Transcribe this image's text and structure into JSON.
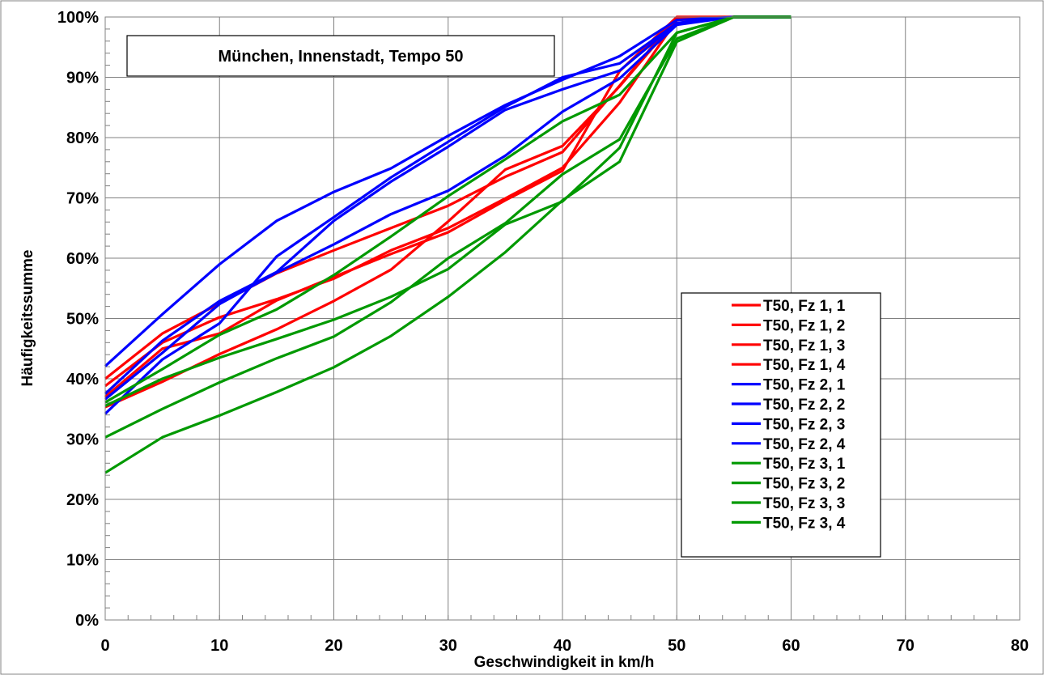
{
  "chart_data": {
    "type": "line",
    "title": "München, Innenstadt, Tempo 50",
    "xlabel": "Geschwindigkeit in km/h",
    "ylabel": "Häufigkeitssumme",
    "xlim": [
      0,
      80
    ],
    "ylim": [
      0,
      100
    ],
    "x_ticks": [
      0,
      10,
      20,
      30,
      40,
      50,
      60,
      70,
      80
    ],
    "y_ticks": [
      "0%",
      "10%",
      "20%",
      "30%",
      "40%",
      "50%",
      "60%",
      "70%",
      "80%",
      "90%",
      "100%"
    ],
    "y_unit": "percent",
    "grid": true,
    "legend_position": "right",
    "x": [
      0,
      5,
      10,
      15,
      20,
      25,
      30,
      35,
      40,
      45,
      50,
      55,
      60
    ],
    "series": [
      {
        "name": "T50, Fz 1, 1",
        "color": "#ff0000",
        "values": [
          40.0,
          47.5,
          52.5,
          57.5,
          61.3,
          65.0,
          68.7,
          73.5,
          77.6,
          88.6,
          100,
          100,
          100
        ]
      },
      {
        "name": "T50, Fz 1, 2",
        "color": "#ff0000",
        "values": [
          38.8,
          46.0,
          50.2,
          53.2,
          56.6,
          61.3,
          65.0,
          69.9,
          75.0,
          85.8,
          99.5,
          100,
          100
        ]
      },
      {
        "name": "T50, Fz 1, 3",
        "color": "#ff0000",
        "values": [
          37.0,
          45.0,
          47.5,
          53.0,
          56.9,
          60.7,
          64.3,
          69.6,
          74.5,
          91.0,
          100,
          100,
          100
        ]
      },
      {
        "name": "T50, Fz 1, 4",
        "color": "#ff0000",
        "values": [
          35.3,
          39.5,
          44.1,
          48.2,
          52.9,
          58.1,
          66.1,
          74.7,
          78.6,
          88.5,
          99.6,
          100,
          100
        ]
      },
      {
        "name": "T50, Fz 2, 1",
        "color": "#0000ff",
        "values": [
          42.1,
          50.7,
          59.0,
          66.2,
          71.0,
          74.9,
          80.3,
          85.4,
          89.6,
          93.5,
          99.5,
          100,
          100
        ]
      },
      {
        "name": "T50, Fz 2, 2",
        "color": "#0000ff",
        "values": [
          37.5,
          46.3,
          52.9,
          57.7,
          66.2,
          72.7,
          78.5,
          84.6,
          88.0,
          91.1,
          99.0,
          100,
          100
        ]
      },
      {
        "name": "T50, Fz 2, 3",
        "color": "#0000ff",
        "values": [
          34.2,
          43.2,
          49.2,
          60.3,
          66.8,
          73.4,
          79.3,
          85.1,
          90.0,
          92.3,
          99.0,
          100,
          100
        ]
      },
      {
        "name": "T50, Fz 2, 4",
        "color": "#0000ff",
        "values": [
          36.6,
          44.3,
          52.4,
          57.6,
          62.3,
          67.3,
          71.2,
          77.0,
          84.3,
          89.8,
          98.7,
          100,
          100
        ]
      },
      {
        "name": "T50, Fz 3, 1",
        "color": "#009900",
        "values": [
          36.1,
          41.6,
          47.3,
          51.5,
          57.2,
          63.6,
          70.3,
          76.4,
          82.7,
          87.1,
          97.4,
          100,
          100
        ]
      },
      {
        "name": "T50, Fz 3, 2",
        "color": "#009900",
        "values": [
          35.5,
          40.0,
          43.5,
          46.6,
          49.8,
          53.6,
          58.2,
          65.6,
          69.4,
          78.3,
          97.4,
          100,
          100
        ]
      },
      {
        "name": "T50, Fz 3, 3",
        "color": "#009900",
        "values": [
          30.3,
          35.0,
          39.4,
          43.4,
          47.0,
          52.7,
          60.0,
          65.8,
          73.9,
          79.7,
          96.4,
          100,
          100
        ]
      },
      {
        "name": "T50, Fz 3, 4",
        "color": "#009900",
        "values": [
          24.4,
          30.3,
          33.9,
          37.8,
          41.9,
          47.1,
          53.6,
          61.0,
          69.6,
          76.0,
          95.9,
          100,
          100
        ]
      }
    ]
  }
}
